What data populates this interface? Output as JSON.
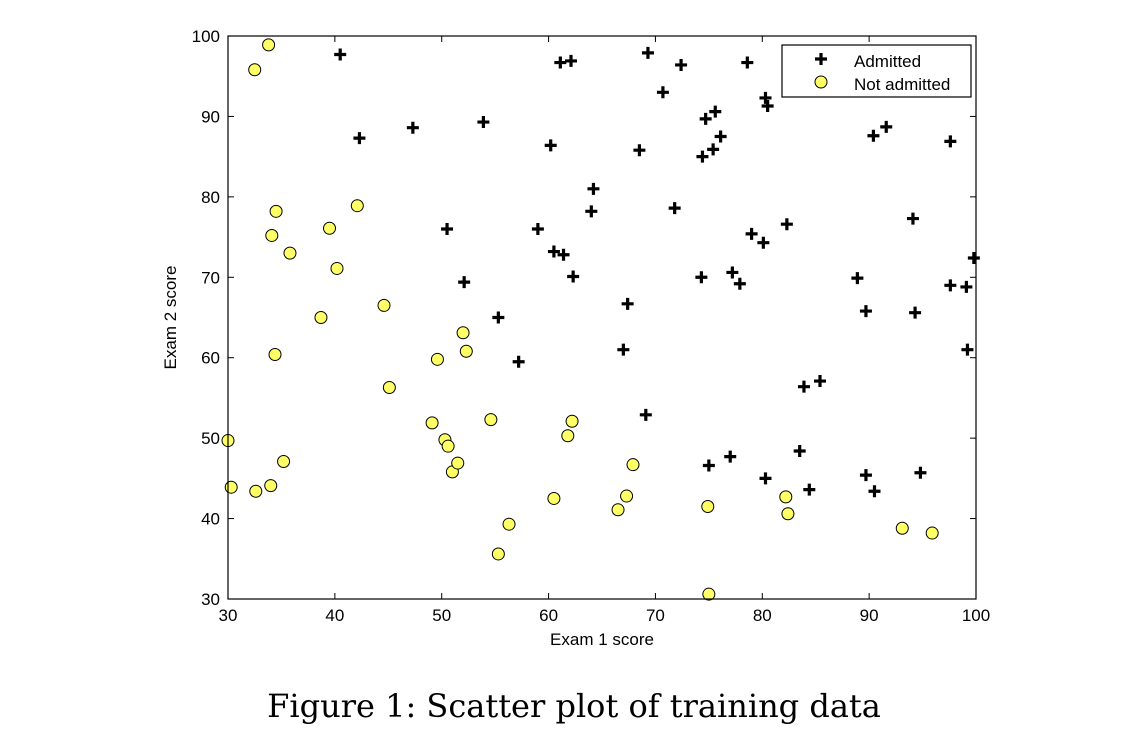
{
  "figure": {
    "caption": "Figure 1: Scatter plot of training data"
  },
  "chart_data": {
    "type": "scatter",
    "title": "",
    "xlabel": "Exam 1 score",
    "ylabel": "Exam 2 score",
    "xlim": [
      30,
      100
    ],
    "ylim": [
      30,
      100
    ],
    "xticks": [
      30,
      40,
      50,
      60,
      70,
      80,
      90,
      100
    ],
    "yticks": [
      30,
      40,
      50,
      60,
      70,
      80,
      90,
      100
    ],
    "grid": false,
    "legend_position": "top-right",
    "colors": {
      "admitted": "#000000",
      "not_admitted_fill": "#ffff66",
      "not_admitted_edge": "#000000"
    },
    "series": [
      {
        "name": "Admitted",
        "marker": "plus",
        "points": [
          [
            40.5,
            97.7
          ],
          [
            42.3,
            87.3
          ],
          [
            47.3,
            88.6
          ],
          [
            50.5,
            76.0
          ],
          [
            52.1,
            69.4
          ],
          [
            53.9,
            89.3
          ],
          [
            55.3,
            65.0
          ],
          [
            57.2,
            59.5
          ],
          [
            59.0,
            76.0
          ],
          [
            60.2,
            86.4
          ],
          [
            60.5,
            73.2
          ],
          [
            61.1,
            96.7
          ],
          [
            61.4,
            72.8
          ],
          [
            62.1,
            96.9
          ],
          [
            62.3,
            70.1
          ],
          [
            64.0,
            78.2
          ],
          [
            64.2,
            81.0
          ],
          [
            67.0,
            61.0
          ],
          [
            67.4,
            66.7
          ],
          [
            68.5,
            85.8
          ],
          [
            69.1,
            52.9
          ],
          [
            69.3,
            97.9
          ],
          [
            70.7,
            93.0
          ],
          [
            71.8,
            78.6
          ],
          [
            72.4,
            96.4
          ],
          [
            74.3,
            70.0
          ],
          [
            74.4,
            85.0
          ],
          [
            74.7,
            89.7
          ],
          [
            75.0,
            46.6
          ],
          [
            75.4,
            85.9
          ],
          [
            75.6,
            90.6
          ],
          [
            76.1,
            87.5
          ],
          [
            77.0,
            47.7
          ],
          [
            77.2,
            70.6
          ],
          [
            77.9,
            69.2
          ],
          [
            78.6,
            96.7
          ],
          [
            79.0,
            75.4
          ],
          [
            80.1,
            74.3
          ],
          [
            80.3,
            92.3
          ],
          [
            80.3,
            45.0
          ],
          [
            80.5,
            91.3
          ],
          [
            82.3,
            76.6
          ],
          [
            83.5,
            48.4
          ],
          [
            83.9,
            56.4
          ],
          [
            84.4,
            43.6
          ],
          [
            85.4,
            57.1
          ],
          [
            88.9,
            69.9
          ],
          [
            89.7,
            45.4
          ],
          [
            89.7,
            65.8
          ],
          [
            90.4,
            87.6
          ],
          [
            90.5,
            43.4
          ],
          [
            91.6,
            88.7
          ],
          [
            94.1,
            77.3
          ],
          [
            94.3,
            65.6
          ],
          [
            94.8,
            45.7
          ],
          [
            97.6,
            86.9
          ],
          [
            97.6,
            69.0
          ],
          [
            99.1,
            68.8
          ],
          [
            99.2,
            61.0
          ],
          [
            99.8,
            72.4
          ]
        ]
      },
      {
        "name": "Not admitted",
        "marker": "circle",
        "points": [
          [
            30.0,
            49.7
          ],
          [
            30.3,
            43.9
          ],
          [
            32.5,
            95.8
          ],
          [
            32.6,
            43.4
          ],
          [
            33.8,
            98.9
          ],
          [
            34.0,
            44.1
          ],
          [
            34.1,
            75.2
          ],
          [
            34.4,
            60.4
          ],
          [
            34.5,
            78.2
          ],
          [
            35.2,
            47.1
          ],
          [
            35.8,
            73.0
          ],
          [
            38.7,
            65.0
          ],
          [
            39.5,
            76.1
          ],
          [
            40.2,
            71.1
          ],
          [
            42.1,
            78.9
          ],
          [
            44.6,
            66.5
          ],
          [
            45.1,
            56.3
          ],
          [
            49.1,
            51.9
          ],
          [
            49.6,
            59.8
          ],
          [
            50.3,
            49.8
          ],
          [
            50.6,
            49.0
          ],
          [
            51.0,
            45.8
          ],
          [
            51.5,
            46.9
          ],
          [
            52.0,
            63.1
          ],
          [
            52.3,
            60.8
          ],
          [
            54.6,
            52.3
          ],
          [
            55.3,
            35.6
          ],
          [
            56.3,
            39.3
          ],
          [
            60.5,
            42.5
          ],
          [
            61.8,
            50.3
          ],
          [
            62.2,
            52.1
          ],
          [
            66.5,
            41.1
          ],
          [
            67.3,
            42.8
          ],
          [
            67.9,
            46.7
          ],
          [
            74.9,
            41.5
          ],
          [
            75.0,
            30.6
          ],
          [
            82.2,
            42.7
          ],
          [
            82.4,
            40.6
          ],
          [
            93.1,
            38.8
          ],
          [
            95.9,
            38.2
          ]
        ]
      }
    ]
  }
}
